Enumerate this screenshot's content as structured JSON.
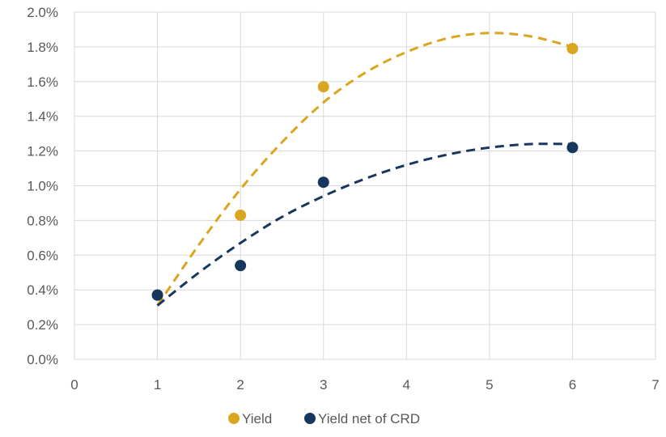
{
  "chart_data": {
    "type": "scatter",
    "xlim": [
      0,
      7
    ],
    "ylim": [
      0,
      0.02
    ],
    "x_ticks": [
      "0",
      "1",
      "2",
      "3",
      "4",
      "5",
      "6",
      "7"
    ],
    "y_ticks": [
      "0.0%",
      "0.2%",
      "0.4%",
      "0.6%",
      "0.8%",
      "1.0%",
      "1.2%",
      "1.4%",
      "1.6%",
      "1.8%",
      "2.0%"
    ],
    "grid": {
      "x": true,
      "y": true
    },
    "legend_position": "bottom",
    "series": [
      {
        "name": "Yield",
        "color": "#DAA520",
        "x": [
          1,
          2,
          3,
          6
        ],
        "y": [
          0.0037,
          0.0083,
          0.0157,
          0.0179
        ],
        "trendline": {
          "style": "dashed",
          "x": [
            1,
            1.5,
            2,
            2.5,
            3,
            3.5,
            4,
            4.5,
            5,
            5.5,
            6
          ],
          "y": [
            0.0031,
            0.0066,
            0.0098,
            0.0125,
            0.0148,
            0.0165,
            0.0177,
            0.0185,
            0.0188,
            0.0186,
            0.018
          ]
        }
      },
      {
        "name": "Yield net of CRD",
        "color": "#17375E",
        "x": [
          1,
          2,
          3,
          6
        ],
        "y": [
          0.0037,
          0.0054,
          0.0102,
          0.0122
        ],
        "trendline": {
          "style": "dashed",
          "x": [
            1,
            1.5,
            2,
            2.5,
            3,
            3.5,
            4,
            4.5,
            5,
            5.5,
            6
          ],
          "y": [
            0.0031,
            0.005,
            0.0067,
            0.0082,
            0.0094,
            0.0104,
            0.0112,
            0.0118,
            0.0122,
            0.0124,
            0.0124
          ]
        }
      }
    ]
  }
}
